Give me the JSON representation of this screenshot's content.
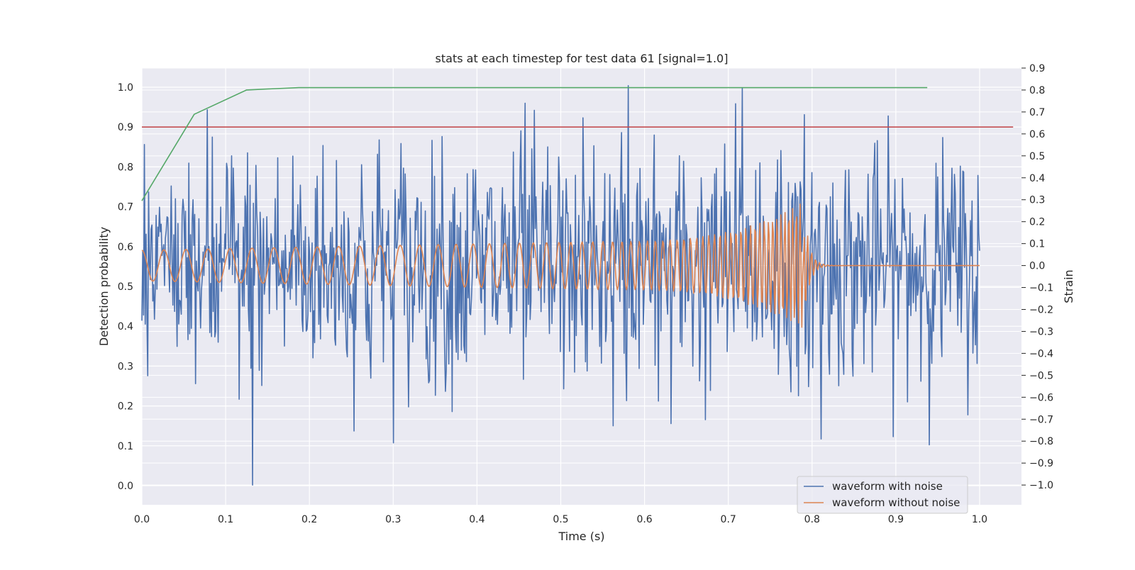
{
  "chart_data": {
    "type": "line",
    "title": "stats at each timestep for test data 61 [signal=1.0]",
    "xlabel": "Time (s)",
    "ylabel_left": "Detection probability",
    "ylabel_right": "Strain",
    "xlim": [
      0.0,
      1.05
    ],
    "ylim_left": [
      -0.048,
      1.048
    ],
    "ylim_right": [
      -1.09,
      0.9
    ],
    "x_ticks": [
      0.0,
      0.1,
      0.2,
      0.3,
      0.4,
      0.5,
      0.6,
      0.7,
      0.8,
      0.9,
      1.0
    ],
    "x_tick_labels": [
      "0.0",
      "0.1",
      "0.2",
      "0.3",
      "0.4",
      "0.5",
      "0.6",
      "0.7",
      "0.8",
      "0.9",
      "1.0"
    ],
    "left_ticks": [
      0.0,
      0.1,
      0.2,
      0.3,
      0.4,
      0.5,
      0.6,
      0.7,
      0.8,
      0.9,
      1.0
    ],
    "left_tick_labels": [
      "0.0",
      "0.1",
      "0.2",
      "0.3",
      "0.4",
      "0.5",
      "0.6",
      "0.7",
      "0.8",
      "0.9",
      "1.0"
    ],
    "right_ticks": [
      -1.0,
      -0.9,
      -0.8,
      -0.7,
      -0.6,
      -0.5,
      -0.4,
      -0.3,
      -0.2,
      -0.1,
      0.0,
      0.1,
      0.2,
      0.3,
      0.4,
      0.5,
      0.6,
      0.7,
      0.8,
      0.9
    ],
    "right_tick_labels": [
      "−1.0",
      "−0.9",
      "−0.8",
      "−0.7",
      "−0.6",
      "−0.5",
      "−0.4",
      "−0.3",
      "−0.2",
      "−0.1",
      "0.0",
      "0.1",
      "0.2",
      "0.3",
      "0.4",
      "0.5",
      "0.6",
      "0.7",
      "0.8",
      "0.9"
    ],
    "grid": true,
    "legend_position": "lower-right",
    "series": [
      {
        "name": "detection probability",
        "axis": "left",
        "color": "#55a868",
        "in_legend": false,
        "x": [
          0.0,
          0.0625,
          0.125,
          0.1875,
          0.25,
          0.3125,
          0.375,
          0.4375,
          0.5,
          0.5625,
          0.625,
          0.6875,
          0.75,
          0.8125,
          0.875,
          0.9375
        ],
        "values": [
          0.715,
          0.932,
          0.993,
          0.999,
          0.999,
          0.999,
          0.999,
          0.999,
          0.999,
          0.999,
          0.999,
          0.999,
          0.999,
          0.999,
          0.999,
          0.999
        ]
      },
      {
        "name": "detection threshold",
        "axis": "left",
        "color": "#c44e52",
        "in_legend": false,
        "x": [
          0.0,
          1.04
        ],
        "values": [
          0.9,
          0.9
        ]
      },
      {
        "name": "waveform with noise",
        "axis": "right",
        "color": "#4c72b0",
        "in_legend": true,
        "x_range": [
          0.0,
          1.0
        ],
        "samples": 1000,
        "approx_range": [
          -1.0,
          0.82
        ],
        "peaks": [
          {
            "x": 0.132,
            "y": -1.0
          },
          {
            "x": 0.581,
            "y": 0.82
          },
          {
            "x": 0.717,
            "y": 0.81
          },
          {
            "x": 0.457,
            "y": 0.74
          },
          {
            "x": 0.811,
            "y": -0.79
          },
          {
            "x": 0.563,
            "y": -0.73
          },
          {
            "x": 0.632,
            "y": -0.72
          }
        ]
      },
      {
        "name": "waveform without noise",
        "axis": "right",
        "color": "#dd8452",
        "in_legend": true,
        "x_range": [
          0.0,
          1.0
        ],
        "samples": 1000,
        "description_values": {
          "start_amplitude": 0.07,
          "amplitude_at_0.55": 0.11,
          "max_amplitude": 0.29,
          "merger_time": 0.79,
          "start_frequency_hz": 38,
          "merger_frequency_hz": 150
        }
      }
    ],
    "legend": [
      {
        "label": "waveform with noise",
        "color": "#4c72b0"
      },
      {
        "label": "waveform without noise",
        "color": "#dd8452"
      }
    ]
  }
}
